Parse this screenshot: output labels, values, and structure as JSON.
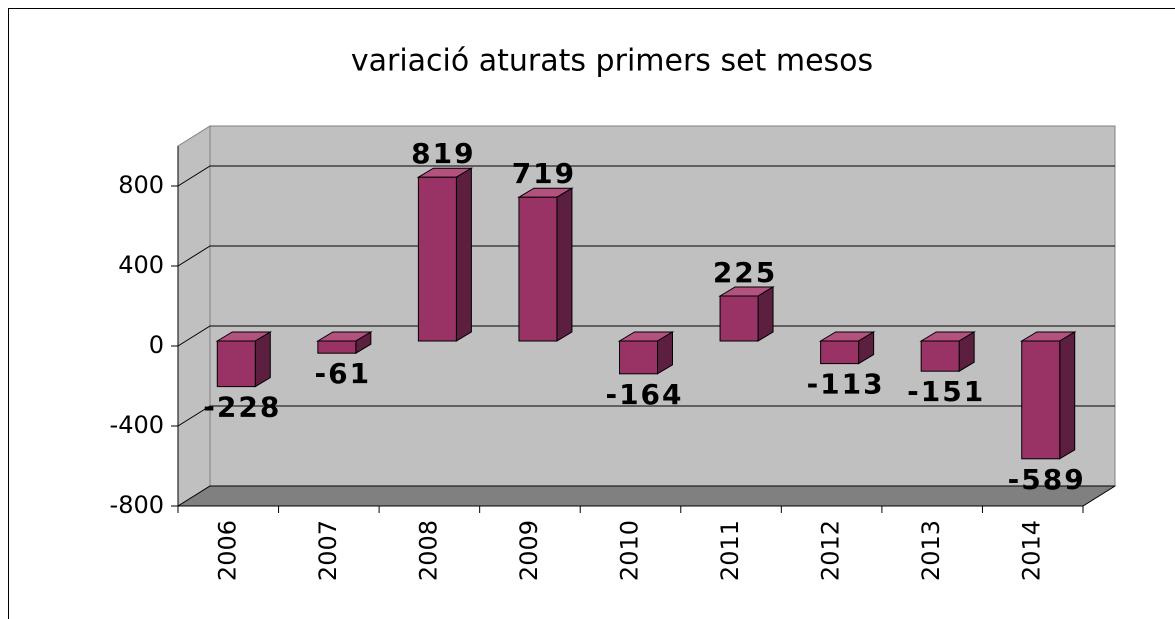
{
  "chart_data": {
    "type": "bar",
    "title": "variació aturats primers set mesos",
    "categories": [
      "2006",
      "2007",
      "2008",
      "2009",
      "2010",
      "2011",
      "2012",
      "2013",
      "2014"
    ],
    "values": [
      -228,
      -61,
      819,
      719,
      -164,
      225,
      -113,
      -151,
      -589
    ],
    "color": "#993366",
    "ylim": [
      -800,
      1000
    ],
    "yticks": [
      -800,
      -400,
      0,
      400,
      800
    ],
    "grid": true
  }
}
